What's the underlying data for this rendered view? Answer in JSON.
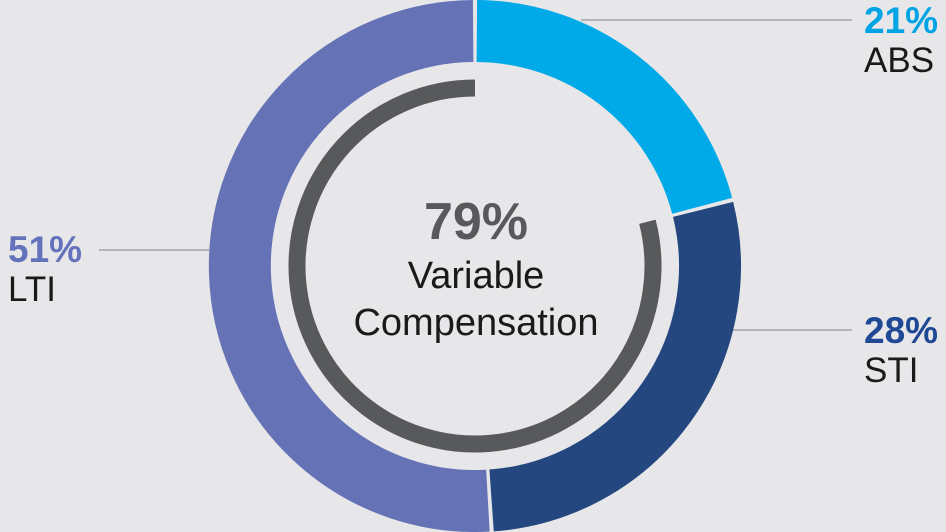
{
  "colors": {
    "background": "#E7E7E9",
    "leader_line": "#B4B4B8",
    "inner_arc_gray": "#58595B",
    "text_dark": "#1A1A1A"
  },
  "center": {
    "percent": "79%",
    "line1": "Variable",
    "line2": "Compensation"
  },
  "callouts": {
    "abs": {
      "percent": "21%",
      "label": "ABS"
    },
    "sti": {
      "percent": "28%",
      "label": "STI"
    },
    "lti": {
      "percent": "51%",
      "label": "LTI"
    }
  },
  "chart_data": {
    "type": "pie",
    "donut": true,
    "title": "",
    "start_angle_deg": 0,
    "direction": "clockwise",
    "slices": [
      {
        "label": "ABS",
        "value": 21,
        "color": "#00A9E8",
        "label_color": "#00A3E4"
      },
      {
        "label": "STI",
        "value": 28,
        "color": "#24477F",
        "label_color": "#1F4994"
      },
      {
        "label": "LTI",
        "value": 51,
        "color": "#6573B6",
        "label_color": "#6372BB"
      }
    ],
    "inner_arc": {
      "value": 79,
      "color": "#58595B"
    },
    "center_label": {
      "percent": "79%",
      "text": "Variable Compensation"
    },
    "legend_position": "callouts-outside"
  }
}
